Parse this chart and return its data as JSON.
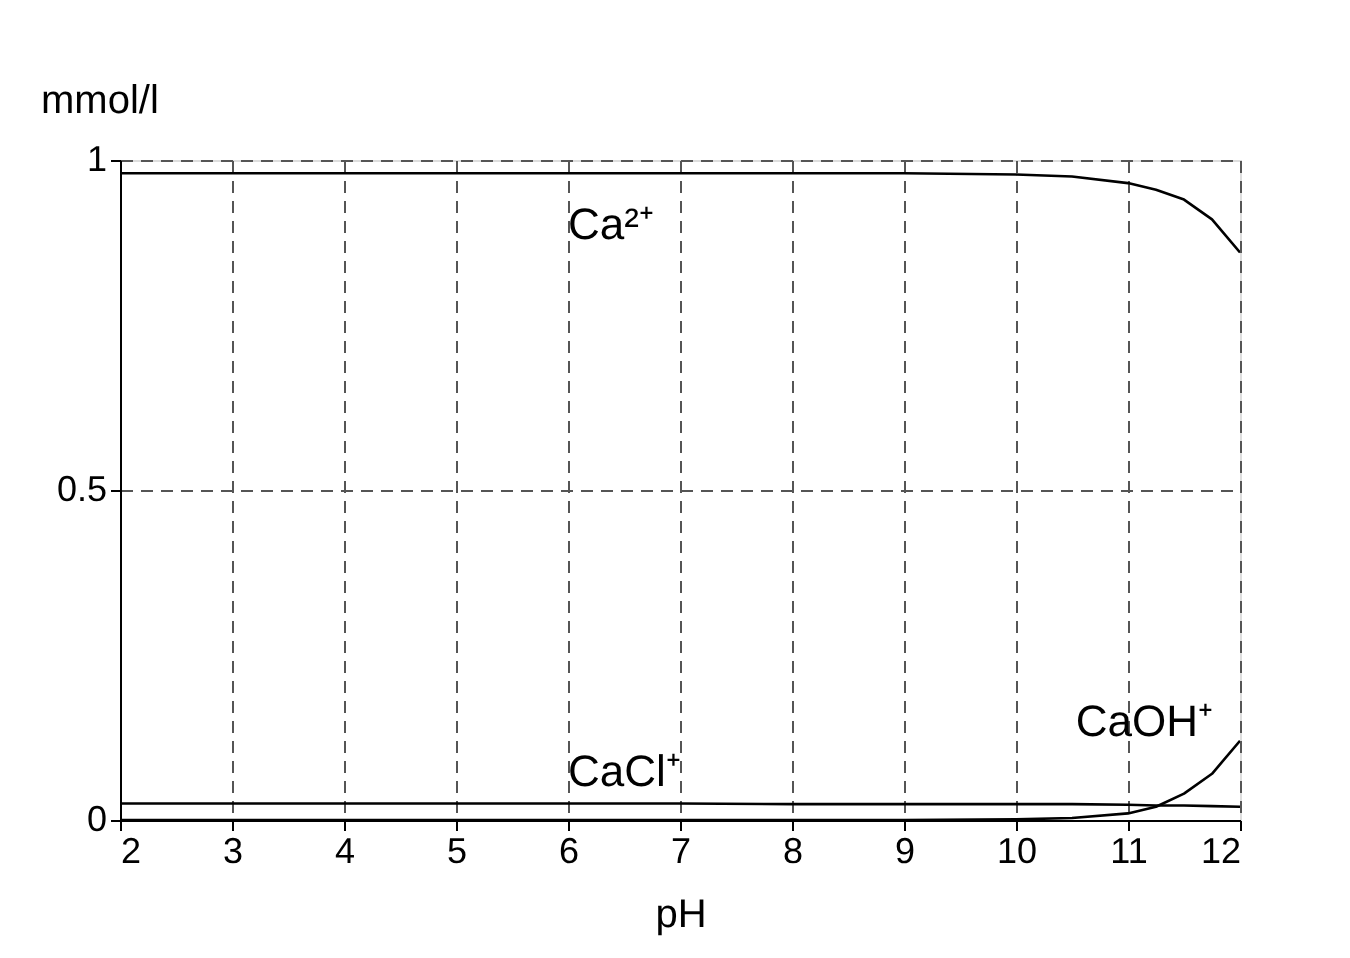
{
  "chart_data": {
    "type": "line",
    "xlabel": "pH",
    "ylabel": "mmol/l",
    "x": [
      2,
      3,
      4,
      5,
      6,
      7,
      8,
      9,
      10,
      10.5,
      11,
      11.25,
      11.5,
      11.75,
      12
    ],
    "series": [
      {
        "name": "Ca²⁺",
        "color": "#000000",
        "values": [
          0.98,
          0.98,
          0.98,
          0.98,
          0.98,
          0.98,
          0.98,
          0.98,
          0.978,
          0.975,
          0.965,
          0.955,
          0.94,
          0.91,
          0.86
        ]
      },
      {
        "name": "CaCl⁺",
        "color": "#000000",
        "values": [
          0.025,
          0.025,
          0.025,
          0.025,
          0.025,
          0.025,
          0.024,
          0.024,
          0.024,
          0.024,
          0.023,
          0.022,
          0.022,
          0.021,
          0.02
        ]
      },
      {
        "name": "CaOH⁺",
        "color": "#000000",
        "values": [
          0,
          0,
          0,
          0,
          0,
          0,
          0,
          0,
          0.001,
          0.003,
          0.01,
          0.02,
          0.04,
          0.07,
          0.12
        ]
      }
    ],
    "xlim": [
      2,
      12
    ],
    "xticks": [
      2,
      3,
      4,
      5,
      6,
      7,
      8,
      9,
      10,
      11,
      12
    ],
    "ylim": [
      0,
      1
    ],
    "yticks": [
      0,
      0.5,
      1
    ],
    "grid": true,
    "legend": false,
    "marker": "none",
    "line_style": "solid"
  }
}
